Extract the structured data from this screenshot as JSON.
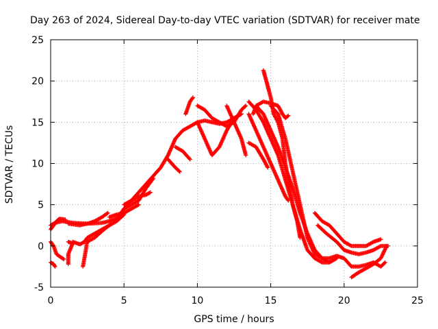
{
  "chart_data": {
    "type": "scatter",
    "title": "Day 263 of 2024, Sidereal Day-to-day VTEC variation (SDTVAR) for receiver mate",
    "xlabel": "GPS time / hours",
    "ylabel": "SDTVAR / TECUs",
    "xlim": [
      0,
      25
    ],
    "ylim": [
      -5,
      25
    ],
    "x_ticks": [
      0,
      5,
      10,
      15,
      20,
      25
    ],
    "y_ticks": [
      -5,
      0,
      5,
      10,
      15,
      20,
      25
    ],
    "grid": true,
    "marker": "+",
    "color": "#ff0000",
    "series": [
      {
        "name": "trace-1",
        "points": [
          [
            0,
            2.5
          ],
          [
            0.3,
            2.8
          ],
          [
            0.8,
            3.0
          ],
          [
            1.5,
            2.8
          ],
          [
            2.5,
            2.7
          ],
          [
            3.5,
            2.8
          ],
          [
            4,
            3.0
          ],
          [
            4.5,
            3.3
          ],
          [
            5,
            4.5
          ],
          [
            5.5,
            5.5
          ],
          [
            6,
            6.5
          ],
          [
            6.5,
            7.5
          ],
          [
            7,
            8.5
          ],
          [
            7.5,
            9.5
          ],
          [
            8,
            11
          ],
          [
            8.5,
            13
          ],
          [
            9,
            14
          ],
          [
            9.5,
            14.5
          ],
          [
            10,
            15
          ],
          [
            10.5,
            15.2
          ],
          [
            11,
            15
          ],
          [
            11.5,
            14.8
          ],
          [
            12,
            15
          ],
          [
            12.5,
            15.5
          ],
          [
            13,
            16
          ]
        ]
      },
      {
        "name": "trace-2",
        "points": [
          [
            9.2,
            16
          ],
          [
            9.5,
            17.5
          ],
          [
            9.7,
            18
          ]
        ]
      },
      {
        "name": "trace-3",
        "points": [
          [
            10,
            17
          ],
          [
            10.5,
            16.5
          ],
          [
            11,
            15.5
          ],
          [
            11.5,
            15
          ],
          [
            12,
            14.5
          ],
          [
            12.5,
            15
          ],
          [
            13,
            16.5
          ],
          [
            13.3,
            17
          ]
        ]
      },
      {
        "name": "trace-4",
        "points": [
          [
            10,
            15
          ],
          [
            10.5,
            13
          ],
          [
            11,
            11
          ],
          [
            11.5,
            12
          ],
          [
            12,
            14
          ],
          [
            12.5,
            15.5
          ],
          [
            13,
            16
          ]
        ]
      },
      {
        "name": "trace-5",
        "points": [
          [
            12,
            17
          ],
          [
            12.5,
            15
          ],
          [
            13,
            13
          ],
          [
            13.3,
            11
          ]
        ]
      },
      {
        "name": "trace-6",
        "points": [
          [
            8.5,
            12
          ],
          [
            9,
            11.5
          ],
          [
            9.5,
            10.5
          ]
        ]
      },
      {
        "name": "trace-7",
        "points": [
          [
            8,
            10.5
          ],
          [
            8.5,
            9.5
          ],
          [
            8.8,
            9
          ]
        ]
      },
      {
        "name": "trace-8",
        "points": [
          [
            5,
            5
          ],
          [
            5.5,
            5.5
          ],
          [
            6,
            6
          ],
          [
            6.5,
            6.2
          ],
          [
            6.8,
            6.5
          ]
        ]
      },
      {
        "name": "trace-9",
        "points": [
          [
            5,
            4.5
          ],
          [
            5.5,
            5
          ],
          [
            6,
            5.5
          ],
          [
            6.5,
            7
          ],
          [
            7,
            8.2
          ]
        ]
      },
      {
        "name": "trace-10",
        "points": [
          [
            4,
            3.5
          ],
          [
            4.5,
            3.8
          ],
          [
            5,
            4
          ],
          [
            5.5,
            4.5
          ],
          [
            6,
            5
          ]
        ]
      },
      {
        "name": "trace-11",
        "points": [
          [
            1.2,
            2.7
          ],
          [
            2,
            2.5
          ],
          [
            2.7,
            2.8
          ],
          [
            3,
            3
          ],
          [
            3.5,
            3.5
          ],
          [
            3.9,
            4
          ]
        ]
      },
      {
        "name": "trace-12",
        "points": [
          [
            2.5,
            0.5
          ],
          [
            3,
            1
          ],
          [
            3.5,
            1.8
          ],
          [
            4,
            2.5
          ],
          [
            4.5,
            3
          ],
          [
            5,
            3.8
          ]
        ]
      },
      {
        "name": "trace-13",
        "points": [
          [
            1.5,
            0.5
          ],
          [
            2,
            0.2
          ],
          [
            2.3,
            0.5
          ],
          [
            2.5,
            1
          ],
          [
            3,
            1.5
          ],
          [
            3.5,
            2
          ],
          [
            4,
            2.5
          ]
        ]
      },
      {
        "name": "trace-14",
        "points": [
          [
            1.2,
            0.5
          ],
          [
            1.5,
            0.3
          ],
          [
            1.2,
            -1
          ],
          [
            1.2,
            -2.2
          ]
        ]
      },
      {
        "name": "trace-15",
        "points": [
          [
            2.5,
            0.8
          ],
          [
            2.4,
            -0.5
          ],
          [
            2.2,
            -2.5
          ]
        ]
      },
      {
        "name": "trace-16",
        "points": [
          [
            0,
            0.5
          ],
          [
            0.2,
            0
          ],
          [
            0.4,
            -1
          ],
          [
            0.8,
            -1.5
          ],
          [
            0.9,
            -1.6
          ]
        ]
      },
      {
        "name": "trace-17",
        "points": [
          [
            0,
            -2
          ],
          [
            0.2,
            -2.2
          ],
          [
            0.3,
            -2.5
          ]
        ]
      },
      {
        "name": "trace-18",
        "points": [
          [
            0,
            2
          ],
          [
            0.2,
            2.5
          ],
          [
            0.4,
            3
          ],
          [
            0.6,
            3.3
          ],
          [
            1,
            3.2
          ]
        ]
      },
      {
        "name": "trace-19",
        "points": [
          [
            14.5,
            21.3
          ],
          [
            14.7,
            20
          ],
          [
            15,
            18
          ],
          [
            15.2,
            16
          ],
          [
            15.5,
            15
          ],
          [
            15.8,
            13
          ],
          [
            16,
            10
          ],
          [
            16.2,
            8
          ],
          [
            16.5,
            5
          ],
          [
            16.8,
            3
          ],
          [
            17,
            1
          ]
        ]
      },
      {
        "name": "trace-20",
        "points": [
          [
            13.8,
            16
          ],
          [
            14,
            17
          ],
          [
            14.5,
            17.5
          ],
          [
            15,
            17.3
          ],
          [
            15.5,
            17
          ],
          [
            15.8,
            16
          ],
          [
            16,
            15.5
          ],
          [
            16.2,
            15.8
          ]
        ]
      },
      {
        "name": "trace-21",
        "points": [
          [
            13.5,
            17.5
          ],
          [
            14,
            16.5
          ],
          [
            14.5,
            15
          ],
          [
            15,
            13
          ],
          [
            15.5,
            11
          ],
          [
            16,
            8
          ],
          [
            16.5,
            5
          ],
          [
            17,
            2
          ],
          [
            17.5,
            -0.5
          ],
          [
            18,
            -1.5
          ],
          [
            18.5,
            -2
          ],
          [
            19,
            -2
          ]
        ]
      },
      {
        "name": "trace-22",
        "points": [
          [
            14,
            17
          ],
          [
            14.5,
            16
          ],
          [
            15,
            14
          ],
          [
            15.5,
            12
          ],
          [
            16,
            9.5
          ],
          [
            16.5,
            7
          ],
          [
            17,
            4
          ],
          [
            17.5,
            1.5
          ],
          [
            18,
            -0.5
          ],
          [
            18.5,
            -1.5
          ],
          [
            19,
            -2
          ],
          [
            19.5,
            -1.5
          ]
        ]
      },
      {
        "name": "trace-23",
        "points": [
          [
            13.5,
            16
          ],
          [
            14,
            14
          ],
          [
            14.5,
            12
          ],
          [
            15,
            10
          ],
          [
            15.5,
            8
          ],
          [
            16,
            6
          ],
          [
            16.2,
            5.5
          ]
        ]
      },
      {
        "name": "trace-24",
        "points": [
          [
            13.5,
            12.5
          ],
          [
            14,
            12
          ],
          [
            14.5,
            10.5
          ],
          [
            14.8,
            9.5
          ]
        ]
      },
      {
        "name": "trace-25",
        "points": [
          [
            15,
            17
          ],
          [
            15.5,
            16
          ],
          [
            16,
            13
          ],
          [
            16.5,
            9
          ],
          [
            17,
            5
          ],
          [
            17.5,
            1
          ],
          [
            18,
            -1
          ],
          [
            18.5,
            -1.5
          ],
          [
            19,
            -1.5
          ],
          [
            19.5,
            -1.2
          ],
          [
            20,
            -1.5
          ],
          [
            20.5,
            -2.5
          ],
          [
            21,
            -2.5
          ],
          [
            21.5,
            -2.3
          ],
          [
            22,
            -2
          ],
          [
            22.5,
            -2.5
          ],
          [
            22.8,
            -2
          ]
        ]
      },
      {
        "name": "trace-26",
        "points": [
          [
            18,
            4
          ],
          [
            18.5,
            3
          ],
          [
            19,
            2.5
          ],
          [
            19.5,
            1.5
          ],
          [
            20,
            0.5
          ],
          [
            20.5,
            0
          ],
          [
            21,
            0
          ],
          [
            21.5,
            0
          ],
          [
            22,
            0.5
          ],
          [
            22.5,
            0.8
          ]
        ]
      },
      {
        "name": "trace-27",
        "points": [
          [
            18.2,
            2.5
          ],
          [
            18.8,
            1.5
          ],
          [
            19.5,
            0.5
          ],
          [
            20,
            -0.5
          ],
          [
            20.5,
            -0.8
          ],
          [
            21,
            -1
          ],
          [
            21.5,
            -0.8
          ],
          [
            22,
            -0.5
          ],
          [
            22.5,
            0
          ],
          [
            23,
            0
          ]
        ]
      },
      {
        "name": "trace-28",
        "points": [
          [
            20.5,
            -3.8
          ],
          [
            21,
            -3.2
          ],
          [
            21.5,
            -2.7
          ],
          [
            22,
            -2.2
          ],
          [
            22.5,
            -1.5
          ],
          [
            22.9,
            0
          ]
        ]
      }
    ]
  }
}
